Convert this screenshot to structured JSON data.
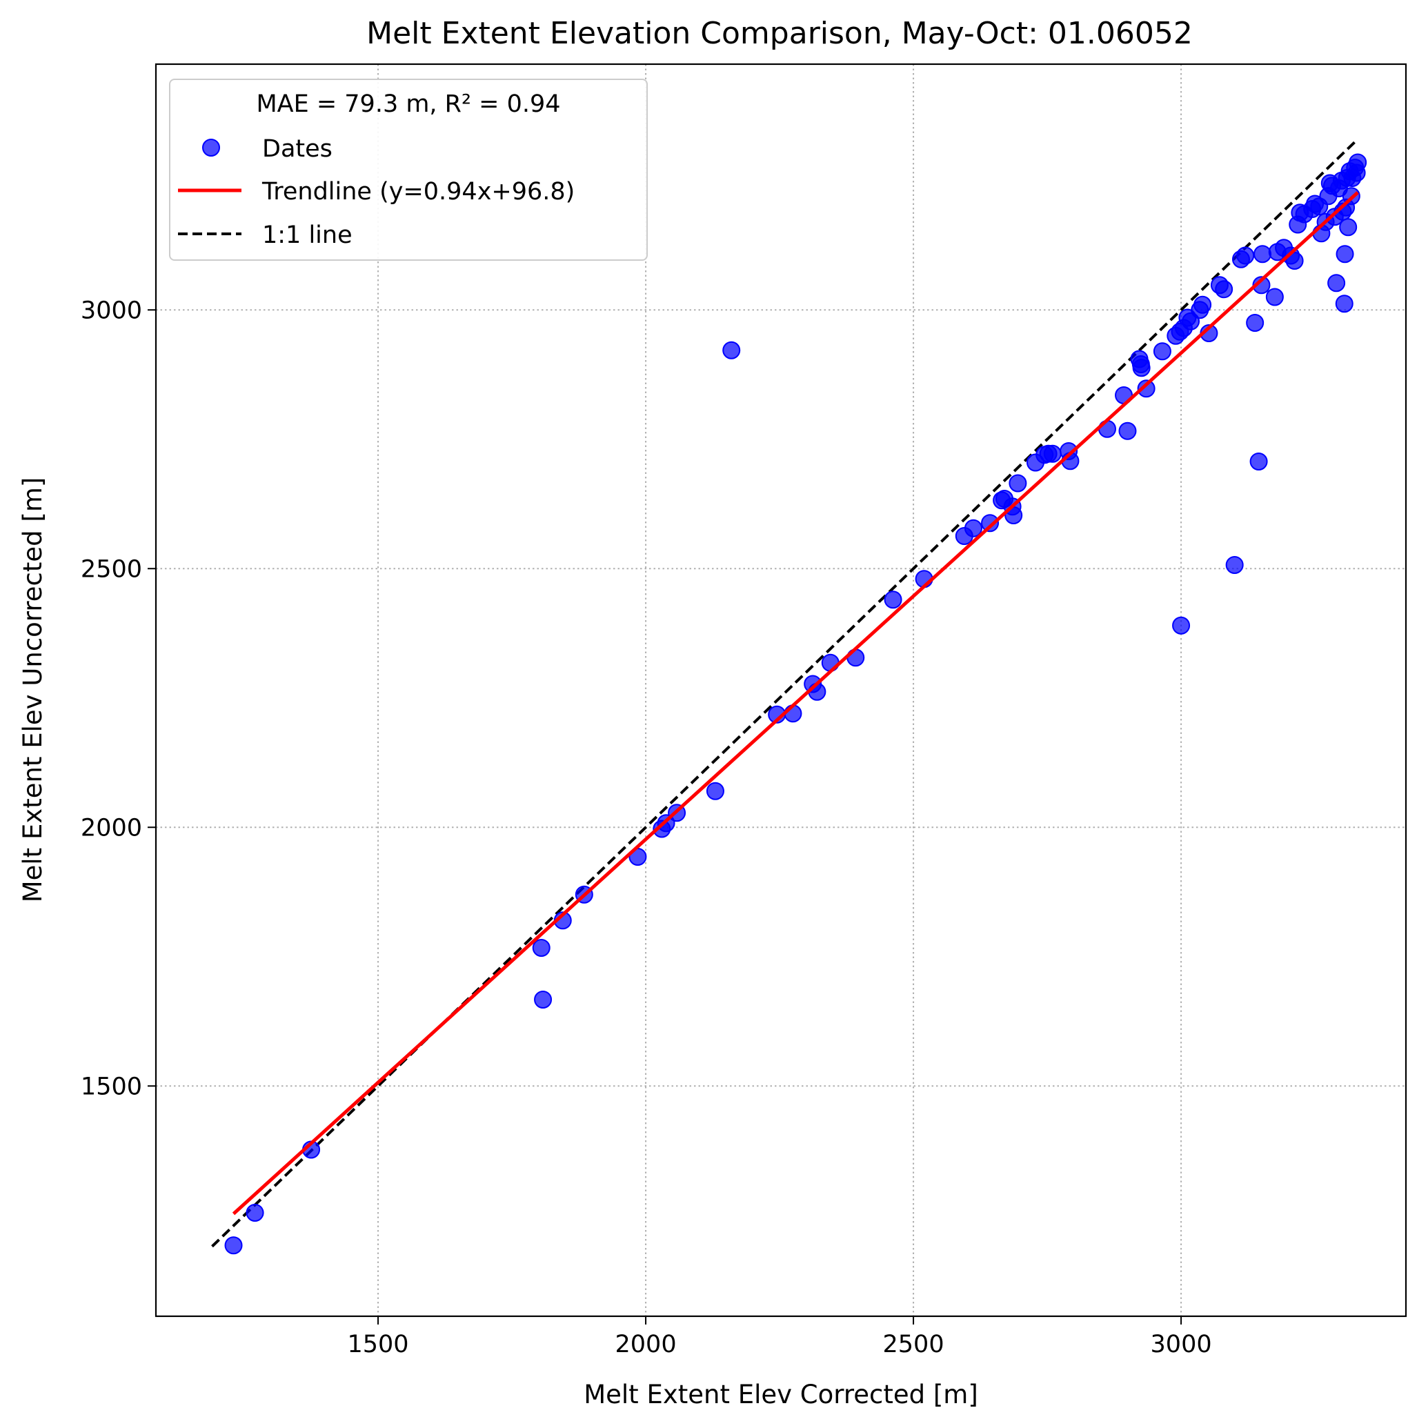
{
  "chart_data": {
    "type": "scatter",
    "title": "Melt Extent Elevation Comparison, May-Oct: 01.06052",
    "xlabel": "Melt Extent Elev Corrected [m]",
    "ylabel": "Melt Extent Elev Uncorrected [m]",
    "xlim": [
      1085,
      3420
    ],
    "ylim": [
      1055,
      3475
    ],
    "xticks": [
      1500,
      2000,
      2500,
      3000
    ],
    "yticks": [
      1500,
      2000,
      2500,
      3000
    ],
    "xtick_labels": [
      "1500",
      "2000",
      "2500",
      "3000"
    ],
    "ytick_labels": [
      "1500",
      "2000",
      "2500",
      "3000"
    ],
    "grid": true,
    "legend": {
      "placement": "upper-left",
      "title": "MAE = 79.3 m,  R² = 0.94",
      "entries": [
        {
          "label": "Dates",
          "kind": "marker",
          "color": "#0000ff"
        },
        {
          "label": "Trendline (y=0.94x+96.8)",
          "kind": "line",
          "color": "#ff0000"
        },
        {
          "label": "1:1 line",
          "kind": "dashed-line",
          "color": "#000000"
        }
      ]
    },
    "trendline": {
      "slope": 0.94,
      "intercept": 96.8,
      "x_range": [
        1230,
        3330
      ],
      "color": "#ff0000"
    },
    "one_to_one": {
      "x_range": [
        1190,
        3330
      ],
      "color": "#000000"
    },
    "series": [
      {
        "name": "Dates",
        "color": "#0000ff",
        "points": [
          [
            1230,
            1192
          ],
          [
            1270,
            1255
          ],
          [
            1375,
            1377
          ],
          [
            1805,
            1767
          ],
          [
            1808,
            1667
          ],
          [
            1845,
            1820
          ],
          [
            1885,
            1870
          ],
          [
            1985,
            1943
          ],
          [
            2030,
            1997
          ],
          [
            2038,
            2008
          ],
          [
            2058,
            2028
          ],
          [
            2130,
            2070
          ],
          [
            2160,
            2922
          ],
          [
            2245,
            2218
          ],
          [
            2275,
            2220
          ],
          [
            2312,
            2277
          ],
          [
            2320,
            2262
          ],
          [
            2345,
            2318
          ],
          [
            2392,
            2328
          ],
          [
            2462,
            2440
          ],
          [
            2520,
            2480
          ],
          [
            2595,
            2563
          ],
          [
            2612,
            2578
          ],
          [
            2643,
            2588
          ],
          [
            2665,
            2632
          ],
          [
            2670,
            2635
          ],
          [
            2685,
            2620
          ],
          [
            2687,
            2603
          ],
          [
            2695,
            2665
          ],
          [
            2728,
            2705
          ],
          [
            2745,
            2720
          ],
          [
            2752,
            2722
          ],
          [
            2760,
            2722
          ],
          [
            2790,
            2727
          ],
          [
            2793,
            2708
          ],
          [
            2862,
            2770
          ],
          [
            2893,
            2835
          ],
          [
            2900,
            2766
          ],
          [
            2922,
            2905
          ],
          [
            2925,
            2895
          ],
          [
            2926,
            2888
          ],
          [
            2935,
            2848
          ],
          [
            2965,
            2920
          ],
          [
            2990,
            2950
          ],
          [
            2998,
            2958
          ],
          [
            3000,
            2390
          ],
          [
            3005,
            2965
          ],
          [
            3012,
            2985
          ],
          [
            3018,
            2978
          ],
          [
            3035,
            3000
          ],
          [
            3040,
            3010
          ],
          [
            3052,
            2955
          ],
          [
            3072,
            3048
          ],
          [
            3080,
            3040
          ],
          [
            3100,
            2507
          ],
          [
            3112,
            3098
          ],
          [
            3120,
            3105
          ],
          [
            3138,
            2975
          ],
          [
            3145,
            2707
          ],
          [
            3150,
            3048
          ],
          [
            3152,
            3108
          ],
          [
            3175,
            3025
          ],
          [
            3180,
            3112
          ],
          [
            3192,
            3120
          ],
          [
            3205,
            3105
          ],
          [
            3212,
            3095
          ],
          [
            3218,
            3165
          ],
          [
            3222,
            3188
          ],
          [
            3230,
            3185
          ],
          [
            3245,
            3195
          ],
          [
            3250,
            3205
          ],
          [
            3258,
            3200
          ],
          [
            3262,
            3148
          ],
          [
            3270,
            3170
          ],
          [
            3275,
            3220
          ],
          [
            3278,
            3245
          ],
          [
            3282,
            3240
          ],
          [
            3287,
            3180
          ],
          [
            3290,
            3052
          ],
          [
            3295,
            3235
          ],
          [
            3300,
            3250
          ],
          [
            3302,
            3190
          ],
          [
            3305,
            3012
          ],
          [
            3306,
            3108
          ],
          [
            3308,
            3198
          ],
          [
            3310,
            3255
          ],
          [
            3312,
            3160
          ],
          [
            3315,
            3268
          ],
          [
            3318,
            3220
          ],
          [
            3320,
            3255
          ],
          [
            3325,
            3275
          ],
          [
            3328,
            3265
          ],
          [
            3330,
            3285
          ]
        ]
      }
    ]
  }
}
